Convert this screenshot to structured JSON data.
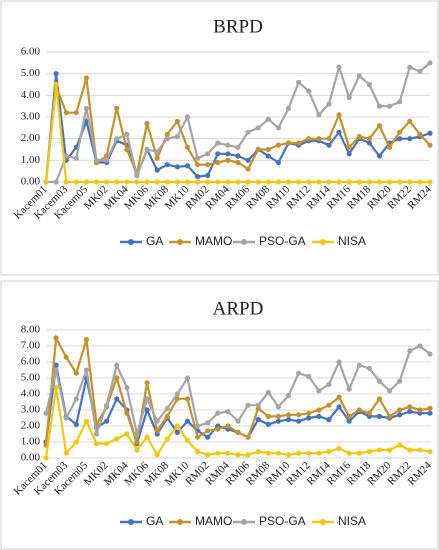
{
  "chart_data": [
    {
      "type": "line",
      "title": "BRPD",
      "categories": [
        "Kacem01",
        null,
        "Kacem03",
        null,
        "Kacem05",
        null,
        "MK02",
        null,
        "MK04",
        null,
        "MK06",
        null,
        "MK08",
        null,
        "MK10",
        null,
        "RM02",
        null,
        "RM04",
        null,
        "RM06",
        null,
        "RM08",
        null,
        "RM10",
        null,
        "RM12",
        null,
        "RM14",
        null,
        "RM16",
        null,
        "RM18",
        null,
        "RM20",
        null,
        "RM22",
        null,
        "RM24"
      ],
      "ylim": [
        0,
        6
      ],
      "yticks": [
        {
          "value": 0,
          "label": "0.00"
        },
        {
          "value": 1,
          "label": "1.00"
        },
        {
          "value": 2,
          "label": "2.00"
        },
        {
          "value": 3,
          "label": "3.00"
        },
        {
          "value": 4,
          "label": "4.00"
        },
        {
          "value": 5,
          "label": "5.00"
        },
        {
          "value": 6,
          "label": "6.00"
        }
      ],
      "grid": true,
      "legend": "bottom",
      "series": [
        {
          "name": "GA",
          "color": "#4472c4",
          "values": [
            0,
            5.0,
            1.0,
            1.6,
            2.8,
            0.9,
            0.9,
            1.9,
            1.7,
            0.3,
            1.5,
            0.55,
            0.8,
            0.7,
            0.75,
            0.25,
            0.3,
            1.3,
            1.3,
            1.2,
            1.0,
            1.5,
            1.2,
            0.9,
            1.8,
            1.7,
            1.9,
            1.9,
            1.7,
            2.3,
            1.3,
            2.0,
            1.8,
            1.2,
            1.8,
            2.0,
            2.0,
            2.1,
            2.25
          ]
        },
        {
          "name": "MAMO",
          "color": "#c5922a",
          "values": [
            0,
            4.4,
            3.2,
            3.2,
            4.8,
            0.9,
            1.2,
            3.4,
            1.5,
            0.4,
            2.7,
            1.1,
            2.2,
            2.8,
            1.6,
            0.8,
            0.8,
            0.9,
            1.0,
            0.9,
            0.6,
            1.5,
            1.5,
            1.7,
            1.8,
            1.8,
            2.0,
            2.0,
            2.0,
            3.1,
            1.6,
            2.1,
            2.0,
            2.6,
            1.6,
            2.3,
            2.8,
            2.2,
            1.7
          ]
        },
        {
          "name": "PSO-GA",
          "color": "#a5a5a5",
          "values": [
            0,
            0,
            1.2,
            1.1,
            3.4,
            1.0,
            1.0,
            2.0,
            2.2,
            0.3,
            1.5,
            1.4,
            2.0,
            2.1,
            3.0,
            1.1,
            1.3,
            1.8,
            1.7,
            1.6,
            2.3,
            2.5,
            2.9,
            2.5,
            3.4,
            4.6,
            4.2,
            3.1,
            3.6,
            5.3,
            3.9,
            4.9,
            4.5,
            3.5,
            3.5,
            3.7,
            5.3,
            5.1,
            5.5
          ]
        },
        {
          "name": "NISA",
          "color": "#f2c80f",
          "values": [
            0,
            4.5,
            0,
            0,
            0,
            0,
            0,
            0,
            0,
            0,
            0,
            0,
            0,
            0,
            0,
            0,
            0,
            0,
            0,
            0,
            0,
            0,
            0,
            0,
            0,
            0,
            0,
            0,
            0,
            0,
            0,
            0,
            0,
            0,
            0,
            0,
            0,
            0,
            0
          ]
        }
      ]
    },
    {
      "type": "line",
      "title": "ARPD",
      "categories": [
        "Kacem01",
        null,
        "Kacem03",
        null,
        "Kacem05",
        null,
        "MK02",
        null,
        "MK04",
        null,
        "MK06",
        null,
        "MK08",
        null,
        "MK10",
        null,
        "RM02",
        null,
        "RM04",
        null,
        "RM06",
        null,
        "RM08",
        null,
        "RM10",
        null,
        "RM12",
        null,
        "RM14",
        null,
        "RM16",
        null,
        "RM18",
        null,
        "RM20",
        null,
        "RM22",
        null,
        "RM24"
      ],
      "ylim": [
        0,
        8
      ],
      "yticks": [
        {
          "value": 0,
          "label": "0.00"
        },
        {
          "value": 1,
          "label": "1.00"
        },
        {
          "value": 2,
          "label": "2.00"
        },
        {
          "value": 3,
          "label": "3.00"
        },
        {
          "value": 4,
          "label": "4.00"
        },
        {
          "value": 5,
          "label": "5.00"
        },
        {
          "value": 6,
          "label": "6.00"
        },
        {
          "value": 7,
          "label": "7.00"
        },
        {
          "value": 8,
          "label": "8.00"
        }
      ],
      "grid": true,
      "legend": "bottom",
      "series": [
        {
          "name": "GA",
          "color": "#4472c4",
          "values": [
            1.0,
            5.8,
            2.6,
            2.1,
            5.0,
            1.9,
            2.3,
            3.7,
            3.0,
            0.9,
            3.0,
            1.5,
            2.5,
            1.6,
            2.3,
            1.7,
            1.3,
            2.0,
            1.8,
            1.6,
            1.3,
            2.4,
            2.1,
            2.3,
            2.4,
            2.3,
            2.5,
            2.6,
            2.4,
            3.2,
            2.3,
            2.9,
            2.6,
            2.6,
            2.5,
            2.7,
            2.9,
            2.8,
            2.8
          ]
        },
        {
          "name": "MAMO",
          "color": "#c5922a",
          "values": [
            0.8,
            7.5,
            6.3,
            5.3,
            7.4,
            2.1,
            3.2,
            5.0,
            2.8,
            1.0,
            4.7,
            1.7,
            2.6,
            3.7,
            3.7,
            1.3,
            1.7,
            1.8,
            2.0,
            1.6,
            1.3,
            3.1,
            2.6,
            2.6,
            2.7,
            2.7,
            2.8,
            3.0,
            3.3,
            3.8,
            2.6,
            3.0,
            2.8,
            3.7,
            2.6,
            3.0,
            3.2,
            3.0,
            3.1
          ]
        },
        {
          "name": "PSO-GA",
          "color": "#a5a5a5",
          "values": [
            2.8,
            5.5,
            2.5,
            3.7,
            5.5,
            1.5,
            3.3,
            5.8,
            4.4,
            1.5,
            3.7,
            2.3,
            3.1,
            4.0,
            5.0,
            2.0,
            2.2,
            2.8,
            2.9,
            2.3,
            3.3,
            3.3,
            4.1,
            3.2,
            3.9,
            5.3,
            5.1,
            4.2,
            4.6,
            6.0,
            4.3,
            5.8,
            5.6,
            4.8,
            4.2,
            4.8,
            6.7,
            7.0,
            6.5
          ]
        },
        {
          "name": "NISA",
          "color": "#f2c80f",
          "values": [
            0,
            4.4,
            0.3,
            1.0,
            2.3,
            0.9,
            0.9,
            1.2,
            1.5,
            0.5,
            1.3,
            0.2,
            1.2,
            2.0,
            1.1,
            0.4,
            0.2,
            0.3,
            0.3,
            0.2,
            0.2,
            0.4,
            0.3,
            0.3,
            0.2,
            0.3,
            0.3,
            0.3,
            0.4,
            0.6,
            0.3,
            0.3,
            0.4,
            0.5,
            0.5,
            0.8,
            0.5,
            0.5,
            0.4
          ]
        }
      ]
    }
  ]
}
